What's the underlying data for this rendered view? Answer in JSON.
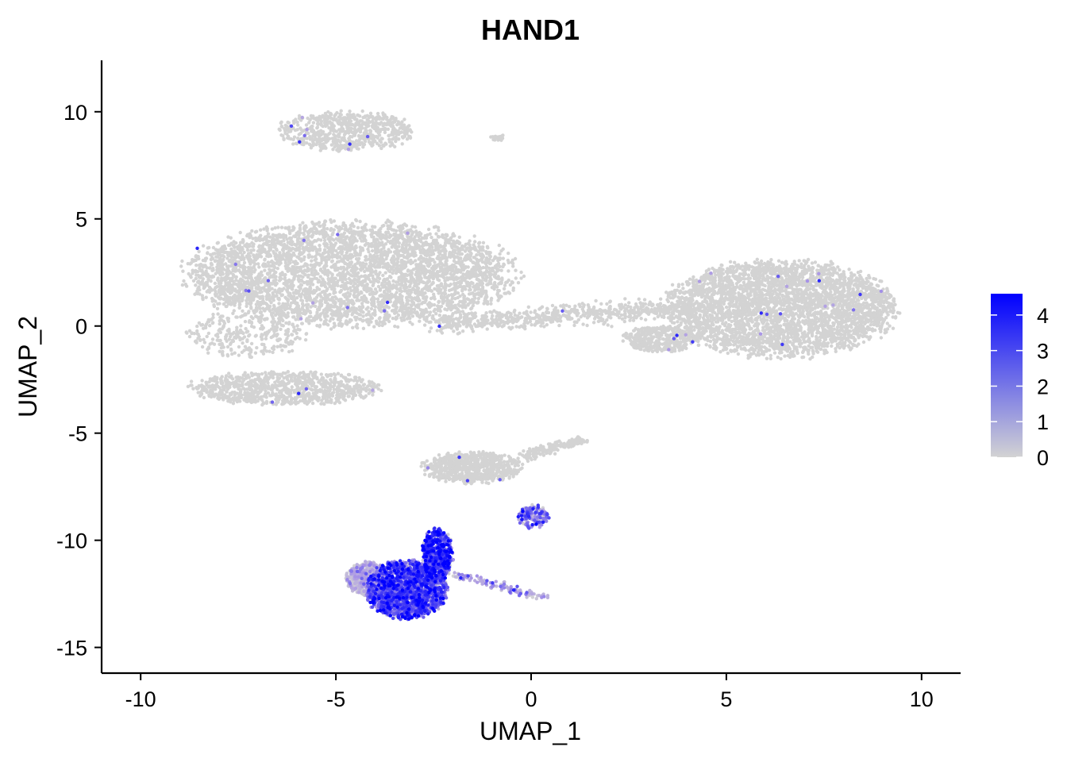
{
  "chart_data": {
    "type": "scatter",
    "title": "HAND1",
    "xlabel": "UMAP_1",
    "ylabel": "UMAP_2",
    "xlim": [
      -11,
      11
    ],
    "ylim": [
      -16.2,
      12.4
    ],
    "x_ticks": [
      -10,
      -5,
      0,
      5,
      10
    ],
    "x_tick_labels": [
      "-10",
      "-5",
      "0",
      "5",
      "10"
    ],
    "y_ticks": [
      10,
      5,
      0,
      -5,
      -10,
      -15
    ],
    "y_tick_labels": [
      "10",
      "5",
      "0",
      "-5",
      "-10",
      "-15"
    ],
    "grid": false,
    "legend": {
      "position": "right",
      "type": "colorbar",
      "min": 0,
      "max": 4.6,
      "ticks": [
        0,
        1,
        2,
        3,
        4
      ],
      "tick_labels": [
        "0",
        "1",
        "2",
        "3",
        "4"
      ],
      "low_color": "#d3d3d3",
      "high_color": "#0000ff"
    },
    "clusters": [
      {
        "shape": "ellipse",
        "cx": -4.6,
        "cy": 2.4,
        "rx": 4.3,
        "ry": 2.5,
        "n": 4200,
        "expr_mean": 0.0,
        "hot_frac": 0.004
      },
      {
        "shape": "ellipse",
        "cx": -7.3,
        "cy": -0.4,
        "rx": 1.6,
        "ry": 1.1,
        "n": 300,
        "expr_mean": 0.0,
        "hot_frac": 0.004
      },
      {
        "shape": "ellipse",
        "cx": -6.3,
        "cy": -2.9,
        "rx": 2.5,
        "ry": 0.8,
        "n": 900,
        "expr_mean": 0.0,
        "hot_frac": 0.006
      },
      {
        "shape": "ellipse",
        "cx": 6.4,
        "cy": 0.8,
        "rx": 3.0,
        "ry": 2.3,
        "n": 3600,
        "expr_mean": 0.0,
        "hot_frac": 0.004
      },
      {
        "shape": "ellipse",
        "cx": 3.3,
        "cy": -0.6,
        "rx": 1.0,
        "ry": 0.6,
        "n": 400,
        "expr_mean": 0.0,
        "hot_frac": 0.003
      },
      {
        "shape": "line",
        "x1": -2.5,
        "y1": 0.1,
        "x2": 4.2,
        "y2": 0.9,
        "spread": 0.22,
        "n": 700,
        "expr_mean": 0.0,
        "hot_frac": 0.004
      },
      {
        "shape": "ellipse",
        "cx": -4.7,
        "cy": 9.1,
        "rx": 1.8,
        "ry": 0.95,
        "n": 700,
        "expr_mean": 0.0,
        "hot_frac": 0.008
      },
      {
        "shape": "ellipse",
        "cx": -0.85,
        "cy": 8.8,
        "rx": 0.2,
        "ry": 0.15,
        "n": 25,
        "expr_mean": 0.0,
        "hot_frac": 0.0
      },
      {
        "shape": "ellipse",
        "cx": -1.5,
        "cy": -6.6,
        "rx": 1.3,
        "ry": 0.75,
        "n": 750,
        "expr_mean": 0.0,
        "hot_frac": 0.003
      },
      {
        "shape": "line",
        "x1": -0.3,
        "y1": -6.1,
        "x2": 1.4,
        "y2": -5.3,
        "spread": 0.12,
        "n": 160,
        "expr_mean": 0.0,
        "hot_frac": 0.0
      },
      {
        "shape": "ellipse",
        "cx": 0.05,
        "cy": -8.9,
        "rx": 0.45,
        "ry": 0.55,
        "n": 150,
        "expr_mean": 2.7,
        "hot_frac": 0.0
      },
      {
        "shape": "ellipse",
        "cx": -4.2,
        "cy": -11.8,
        "rx": 0.55,
        "ry": 0.8,
        "n": 600,
        "expr_mean": 0.7,
        "hot_frac": 0.0
      },
      {
        "shape": "ellipse",
        "cx": -3.2,
        "cy": -12.3,
        "rx": 1.05,
        "ry": 1.4,
        "n": 1800,
        "expr_mean": 3.1,
        "hot_frac": 0.0
      },
      {
        "shape": "ellipse",
        "cx": -2.4,
        "cy": -10.7,
        "rx": 0.4,
        "ry": 1.3,
        "n": 650,
        "expr_mean": 3.3,
        "hot_frac": 0.0
      },
      {
        "shape": "line",
        "x1": -2.0,
        "y1": -11.6,
        "x2": 0.4,
        "y2": -12.7,
        "spread": 0.1,
        "n": 110,
        "expr_mean": 1.4,
        "hot_frac": 0.0
      }
    ]
  }
}
